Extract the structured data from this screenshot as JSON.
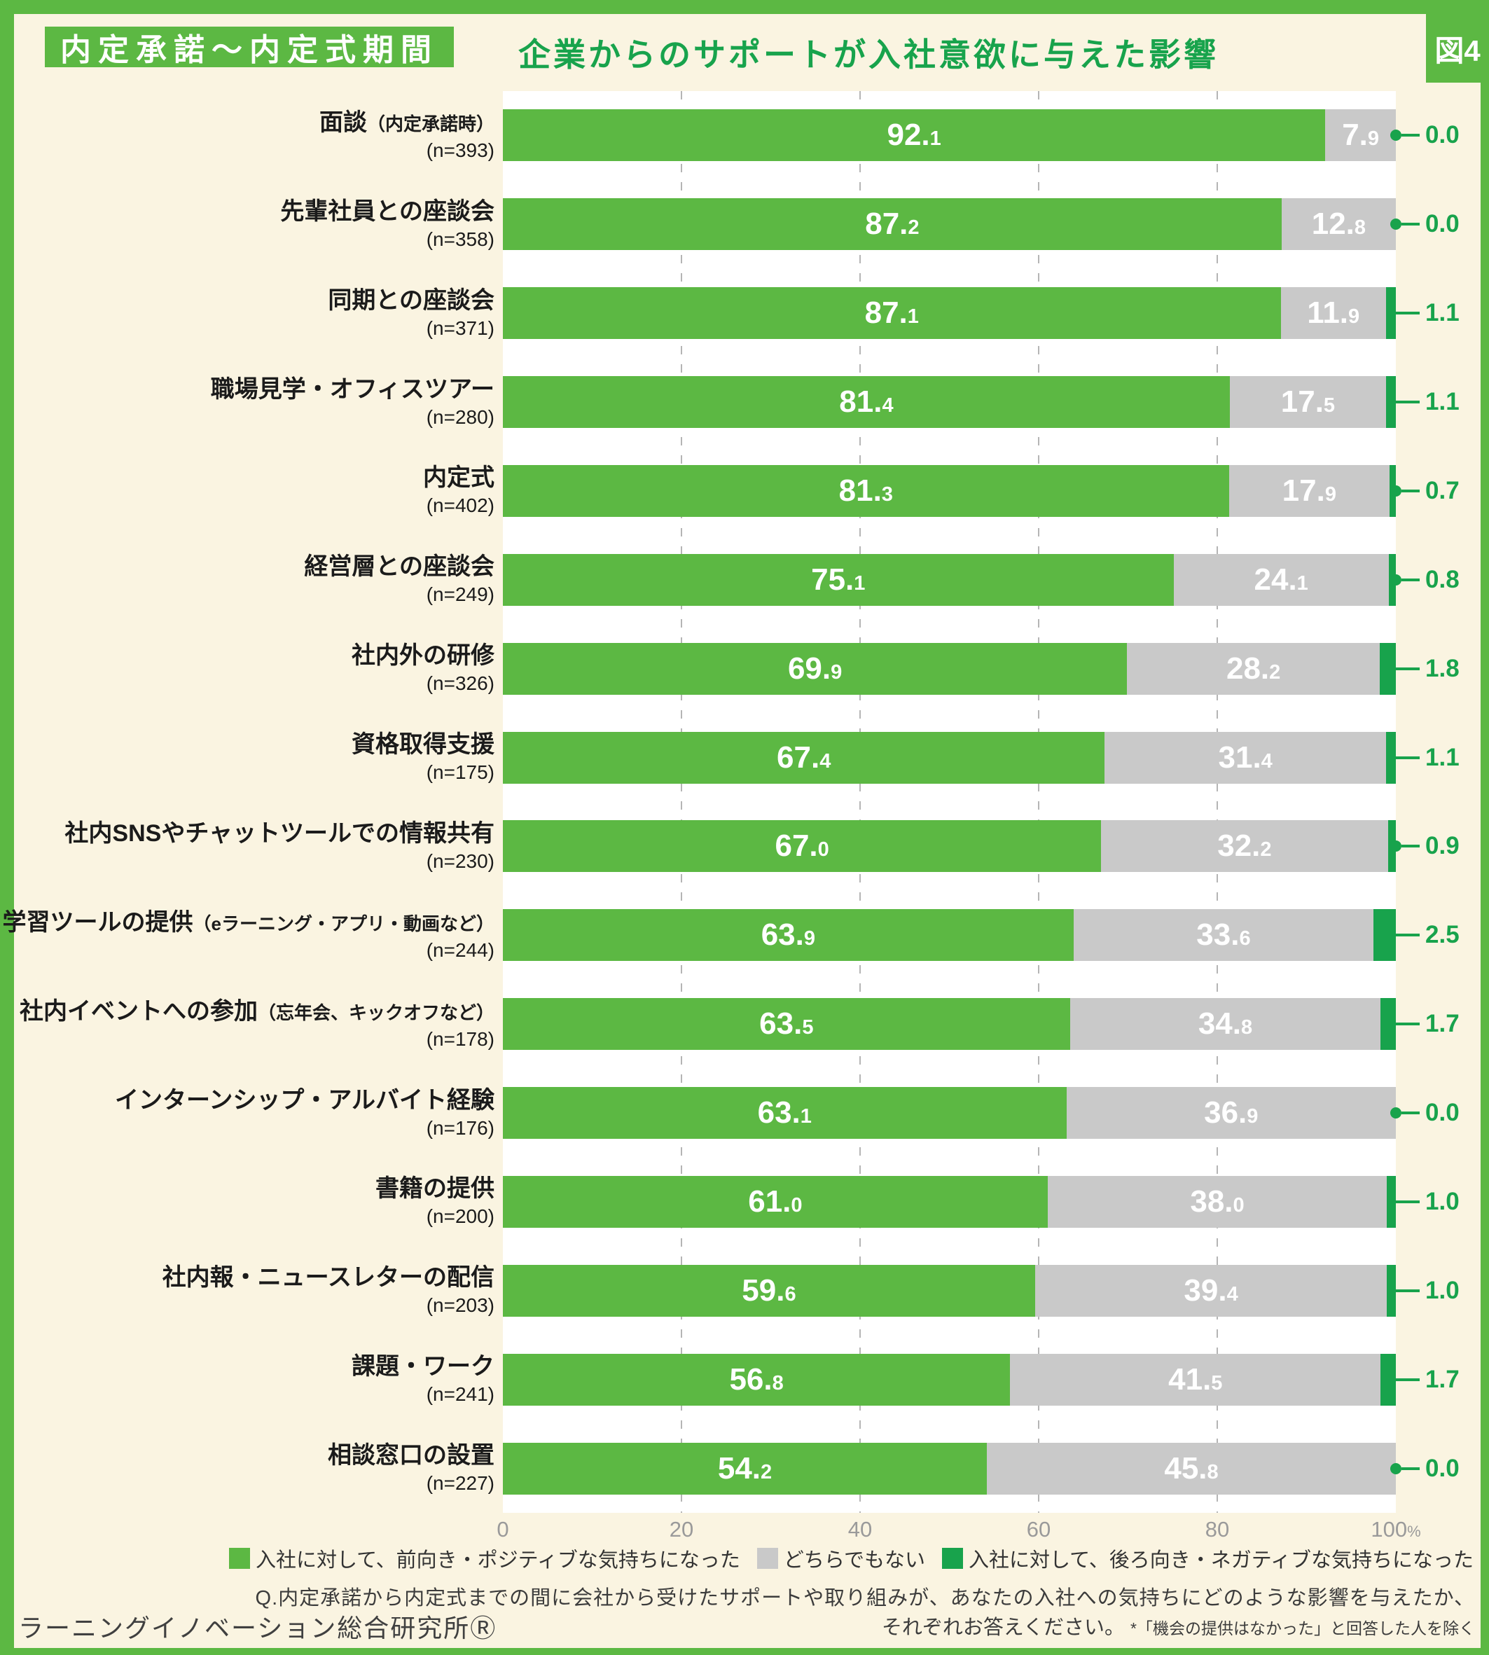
{
  "figure_label": "図4",
  "header": {
    "badge": "内定承諾〜内定式期間",
    "title": "企業からのサポートが入社意欲に与えた影響"
  },
  "colors": {
    "positive": "#5cb843",
    "neutral": "#c9c9c9",
    "negative": "#18a34c",
    "background": "#faf4e1",
    "frame": "#5cb843"
  },
  "chart_data": {
    "type": "bar",
    "stacked": true,
    "orientation": "horizontal",
    "xlim": [
      0,
      100
    ],
    "x_ticks": [
      0,
      20,
      40,
      60,
      80,
      100
    ],
    "x_tick_labels": [
      "0",
      "20",
      "40",
      "60",
      "80",
      "100%"
    ],
    "grid": "dashed-vertical",
    "legend_position": "bottom",
    "categories": [
      {
        "label": "面談",
        "sublabel": "（内定承諾時）",
        "n": "(n=393)"
      },
      {
        "label": "先輩社員との座談会",
        "sublabel": "",
        "n": "(n=358)"
      },
      {
        "label": "同期との座談会",
        "sublabel": "",
        "n": "(n=371)"
      },
      {
        "label": "職場見学・オフィスツアー",
        "sublabel": "",
        "n": "(n=280)"
      },
      {
        "label": "内定式",
        "sublabel": "",
        "n": "(n=402)"
      },
      {
        "label": "経営層との座談会",
        "sublabel": "",
        "n": "(n=249)"
      },
      {
        "label": "社内外の研修",
        "sublabel": "",
        "n": "(n=326)"
      },
      {
        "label": "資格取得支援",
        "sublabel": "",
        "n": "(n=175)"
      },
      {
        "label": "社内SNSやチャットツールでの情報共有",
        "sublabel": "",
        "n": "(n=230)"
      },
      {
        "label": "学習ツールの提供",
        "sublabel": "（eラーニング・アプリ・動画など）",
        "n": "(n=244)"
      },
      {
        "label": "社内イベントへの参加",
        "sublabel": "（忘年会、キックオフなど）",
        "n": "(n=178)"
      },
      {
        "label": "インターンシップ・アルバイト経験",
        "sublabel": "",
        "n": "(n=176)"
      },
      {
        "label": "書籍の提供",
        "sublabel": "",
        "n": "(n=200)"
      },
      {
        "label": "社内報・ニュースレターの配信",
        "sublabel": "",
        "n": "(n=203)"
      },
      {
        "label": "課題・ワーク",
        "sublabel": "",
        "n": "(n=241)"
      },
      {
        "label": "相談窓口の設置",
        "sublabel": "",
        "n": "(n=227)"
      }
    ],
    "series": [
      {
        "name": "入社に対して、前向き・ポジティブな気持ちになった",
        "color": "#5cb843",
        "values": [
          92.1,
          87.2,
          87.1,
          81.4,
          81.3,
          75.1,
          69.9,
          67.4,
          67.0,
          63.9,
          63.5,
          63.1,
          61.0,
          59.6,
          56.8,
          54.2
        ]
      },
      {
        "name": "どちらでもない",
        "color": "#c9c9c9",
        "values": [
          7.9,
          12.8,
          11.9,
          17.5,
          17.9,
          24.1,
          28.2,
          31.4,
          32.2,
          33.6,
          34.8,
          36.9,
          38.0,
          39.4,
          41.5,
          45.8
        ]
      },
      {
        "name": "入社に対して、後ろ向き・ネガティブな気持ちになった",
        "color": "#18a34c",
        "values": [
          0.0,
          0.0,
          1.1,
          1.1,
          0.7,
          0.8,
          1.8,
          1.1,
          0.9,
          2.5,
          1.7,
          0.0,
          1.0,
          1.0,
          1.7,
          0.0
        ]
      }
    ]
  },
  "footer": {
    "question_line1": "Q.内定承諾から内定式までの間に会社から受けたサポートや取り組みが、あなたの入社への気持ちにどのような影響を与えたか、",
    "question_line2": "それぞれお答えください。",
    "note": "*「機会の提供はなかった」と回答した人を除く",
    "source": "ラーニングイノベーション総合研究所Ⓡ"
  }
}
